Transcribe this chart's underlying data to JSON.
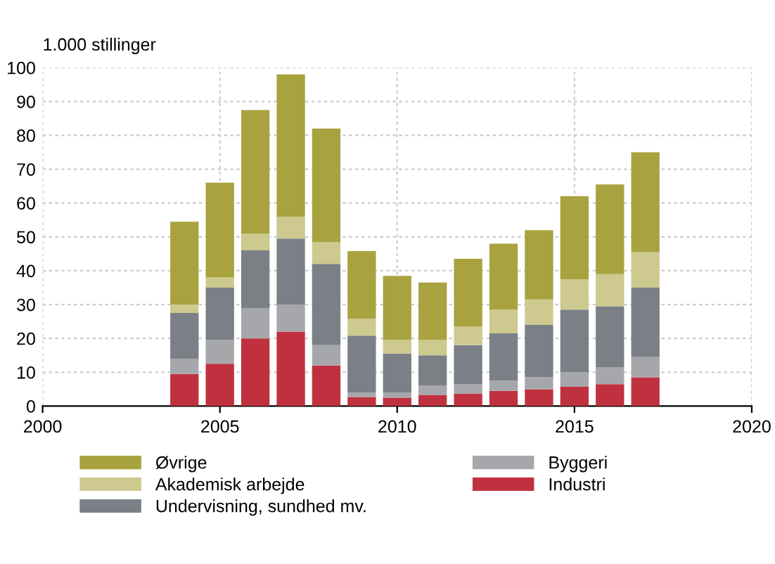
{
  "chart_data": {
    "type": "bar",
    "stacked": true,
    "ylabel": "1.000 stillinger",
    "x": [
      2004,
      2005,
      2006,
      2007,
      2008,
      2009,
      2010,
      2011,
      2012,
      2013,
      2014,
      2015,
      2016,
      2017
    ],
    "series": [
      {
        "name": "Industri",
        "color": "#c0313f",
        "values": [
          9.5,
          12.5,
          20,
          22,
          12,
          2.7,
          2.5,
          3.3,
          3.7,
          4.5,
          5,
          5.7,
          6.5,
          8.5
        ]
      },
      {
        "name": "Byggeri",
        "color": "#a5a7ab",
        "values": [
          4.5,
          7,
          9,
          8,
          6,
          1.3,
          1.5,
          2.7,
          2.8,
          3,
          3.5,
          4.3,
          5,
          6
        ]
      },
      {
        "name": "Undervisning, sundhed mv.",
        "color": "#7b7f86",
        "values": [
          13.5,
          15.5,
          17,
          19.5,
          24,
          16.8,
          11.5,
          9,
          11.5,
          14,
          15.5,
          18.5,
          18,
          20.5
        ]
      },
      {
        "name": "Akademisk arbejde",
        "color": "#cdc98f",
        "values": [
          2.5,
          3,
          5,
          6.5,
          6.5,
          5,
          4,
          4.5,
          5.5,
          7,
          7.5,
          9,
          9.5,
          10.5
        ]
      },
      {
        "name": "Øvrige",
        "color": "#a8a33f",
        "values": [
          24.5,
          28,
          36.5,
          42,
          33.5,
          20,
          19,
          17,
          20,
          19.5,
          20.5,
          24.5,
          26.5,
          29.5
        ]
      }
    ],
    "xlim": [
      2000,
      2020
    ],
    "xticks": [
      2000,
      2005,
      2010,
      2015,
      2020
    ],
    "ylim": [
      0,
      100
    ],
    "yticks": [
      0,
      10,
      20,
      30,
      40,
      50,
      60,
      70,
      80,
      90,
      100
    ],
    "grid": true,
    "legend": "bottom"
  }
}
